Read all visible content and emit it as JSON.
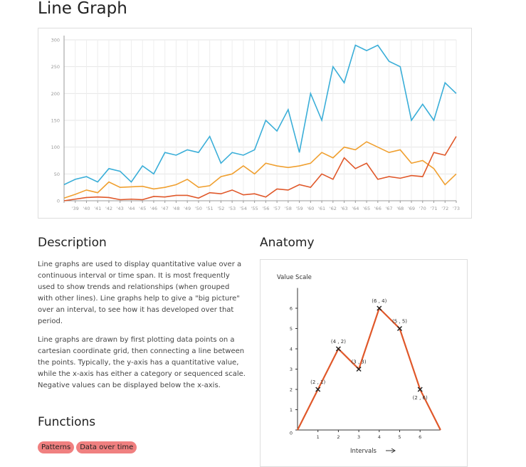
{
  "title": "Line Graph",
  "description": {
    "heading": "Description",
    "paragraphs": [
      "Line graphs are used to display quantitative value over a continuous interval or time span. It is most frequently used to show trends and relationships (when grouped with other lines). Line graphs help to give a \"big picture\" over an interval, to see how it has developed over that period.",
      "Line graphs are drawn by first plotting data points on a cartesian coordinate grid, then connecting a line between the points. Typically, the y-axis has a quantitative value, while the x-axis has either a category or sequenced scale. Negative values can be displayed below the x-axis."
    ]
  },
  "anatomy": {
    "heading": "Anatomy"
  },
  "functions": {
    "heading": "Functions",
    "tags": [
      "Patterns",
      "Data over time"
    ]
  },
  "chart_data": [
    {
      "type": "line",
      "grid": true,
      "categories": [
        null,
        "'39",
        "'40",
        "'41",
        "'42",
        "'43",
        "'44",
        "'45",
        "'46",
        "'47",
        "'48",
        "'49",
        "'50",
        "'51",
        "'52",
        "'53",
        "'54",
        "'55",
        "'56",
        "'57",
        "'58",
        "'59",
        "'60",
        "'61",
        "'62",
        "'63",
        "'64",
        "'65",
        "'66",
        "'67",
        "'68",
        "'69",
        "'70",
        "'71",
        "'72",
        "'73"
      ],
      "ylim": [
        0,
        300
      ],
      "yticks": [
        0,
        50,
        100,
        150,
        200,
        250,
        300
      ],
      "series": [
        {
          "color": "#3aaed8",
          "values": [
            30,
            40,
            45,
            35,
            60,
            55,
            35,
            65,
            50,
            90,
            85,
            95,
            90,
            120,
            70,
            90,
            85,
            95,
            150,
            130,
            170,
            90,
            200,
            150,
            250,
            220,
            290,
            280,
            290,
            260,
            250,
            150,
            180,
            150,
            220,
            200
          ]
        },
        {
          "color": "#f0a030",
          "values": [
            5,
            12,
            20,
            15,
            35,
            25,
            26,
            27,
            22,
            25,
            30,
            40,
            25,
            28,
            45,
            50,
            65,
            50,
            70,
            65,
            62,
            65,
            70,
            90,
            80,
            100,
            95,
            110,
            100,
            90,
            95,
            70,
            75,
            60,
            30,
            50
          ]
        },
        {
          "color": "#e0582a",
          "values": [
            0,
            3,
            6,
            7,
            6,
            2,
            3,
            2,
            8,
            7,
            10,
            10,
            5,
            15,
            13,
            20,
            11,
            13,
            7,
            22,
            20,
            30,
            25,
            50,
            40,
            80,
            60,
            70,
            40,
            45,
            42,
            47,
            45,
            90,
            85,
            120
          ]
        }
      ]
    },
    {
      "type": "line",
      "ylabel": "Value Scale",
      "xlabel": "Intervals",
      "x": [
        0,
        1,
        2,
        3,
        4,
        5,
        6,
        7
      ],
      "xlim": [
        0,
        7
      ],
      "xticks": [
        1,
        2,
        3,
        4,
        5,
        6
      ],
      "ylim": [
        0,
        7
      ],
      "yticks": [
        0,
        1,
        2,
        3,
        4,
        5,
        6
      ],
      "series": [
        {
          "color": "#e0582a",
          "values": [
            0,
            2,
            4,
            3,
            6,
            5,
            2,
            0
          ],
          "value_labels": [
            null,
            "(2 , 1)",
            "(4 , 2)",
            "(3 , 3)",
            "(6 , 4)",
            "(5 , 5)",
            "(2 , 6)",
            null
          ]
        }
      ]
    }
  ]
}
